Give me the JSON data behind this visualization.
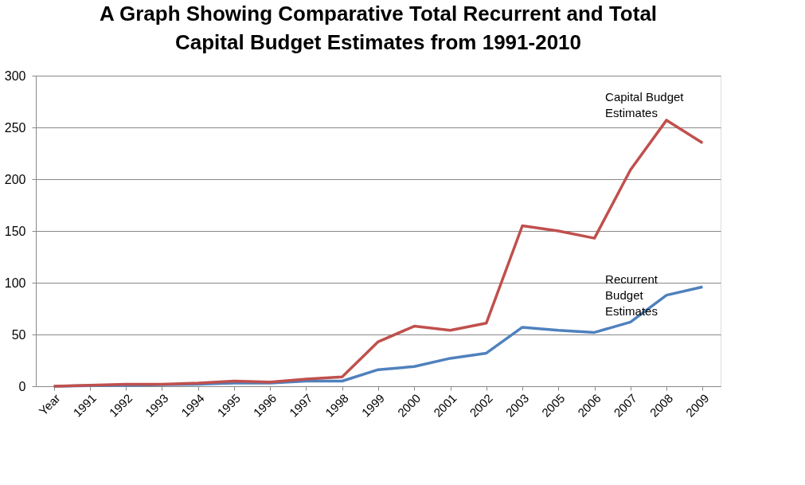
{
  "chart_data": {
    "type": "line",
    "title": "A Graph Showing Comparative Total Recurrent and Total\nCapital Budget Estimates from 1991-2010",
    "categories": [
      "Year",
      "1991",
      "1992",
      "1993",
      "1994",
      "1995",
      "1996",
      "1997",
      "1998",
      "1999",
      "2000",
      "2001",
      "2002",
      "2003",
      "2005",
      "2006",
      "2007",
      "2008",
      "2009"
    ],
    "series": [
      {
        "color": "#4f81bd",
        "values": [
          0,
          0.5,
          1,
          1.5,
          2,
          3,
          3,
          5,
          5,
          16,
          19,
          27,
          32,
          57,
          54,
          52,
          62,
          88,
          96
        ]
      },
      {
        "color": "#c0504d",
        "values": [
          0,
          1,
          2,
          2,
          3,
          5,
          4,
          7,
          9,
          43,
          58,
          54,
          61,
          155,
          150,
          143,
          209,
          257,
          235
        ]
      }
    ],
    "annotations": [
      "Capital Budget\nEstimates",
      "Recurrent\nBudget\nEstimates"
    ],
    "ylim": [
      0,
      300
    ],
    "yticks": [
      0,
      50,
      100,
      150,
      200,
      250,
      300
    ],
    "grid": "y",
    "legend": false,
    "marker": "none",
    "line_style": "solid"
  }
}
